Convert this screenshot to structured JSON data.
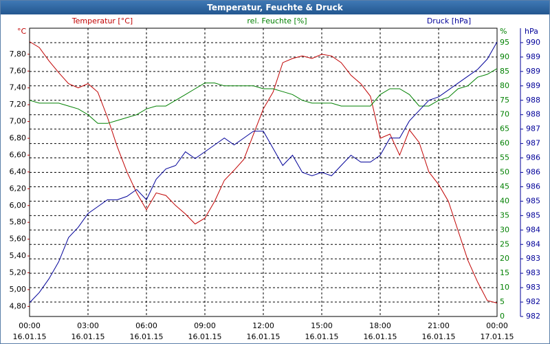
{
  "chart_data": {
    "type": "line",
    "title": "Temperatur, Feuchte & Druck",
    "x": [
      0,
      0.5,
      1,
      1.5,
      2,
      2.5,
      3,
      3.5,
      4,
      4.5,
      5,
      5.5,
      6,
      6.5,
      7,
      7.5,
      8,
      8.5,
      9,
      9.5,
      10,
      10.5,
      11,
      11.5,
      12,
      12.5,
      13,
      13.5,
      14,
      14.5,
      15,
      15.5,
      16,
      16.5,
      17,
      17.5,
      18,
      18.5,
      19,
      19.5,
      20,
      20.5,
      21,
      21.5,
      22,
      22.5,
      23,
      23.5,
      24
    ],
    "xlim": [
      0,
      24
    ],
    "xticks": [
      {
        "value": 0,
        "label": "00:00"
      },
      {
        "value": 3,
        "label": "03:00"
      },
      {
        "value": 6,
        "label": "06:00"
      },
      {
        "value": 9,
        "label": "09:00"
      },
      {
        "value": 12,
        "label": "12:00"
      },
      {
        "value": 15,
        "label": "15:00"
      },
      {
        "value": 18,
        "label": "18:00"
      },
      {
        "value": 21,
        "label": "21:00"
      },
      {
        "value": 24,
        "label": "00:00"
      }
    ],
    "xtick_dates": [
      "16.01.15",
      "16.01.15",
      "16.01.15",
      "16.01.15",
      "16.01.15",
      "16.01.15",
      "16.01.15",
      "16.01.15",
      "17.01.15"
    ],
    "ylabel": "°C",
    "y2label": "%",
    "y3label": "hPa",
    "ylim": [
      4.68,
      8.11
    ],
    "yticks": [
      {
        "value": 4.8,
        "label": "4,80"
      },
      {
        "value": 5.0,
        "label": "5,00"
      },
      {
        "value": 5.2,
        "label": "5,20"
      },
      {
        "value": 5.4,
        "label": "5,40"
      },
      {
        "value": 5.6,
        "label": "5,60"
      },
      {
        "value": 5.8,
        "label": "5,80"
      },
      {
        "value": 6.0,
        "label": "6,00"
      },
      {
        "value": 6.2,
        "label": "6,20"
      },
      {
        "value": 6.4,
        "label": "6,40"
      },
      {
        "value": 6.6,
        "label": "6,60"
      },
      {
        "value": 6.8,
        "label": "6,80"
      },
      {
        "value": 7.0,
        "label": "7,00"
      },
      {
        "value": 7.2,
        "label": "7,20"
      },
      {
        "value": 7.4,
        "label": "7,40"
      },
      {
        "value": 7.6,
        "label": "7,60"
      },
      {
        "value": 7.8,
        "label": "7,80"
      }
    ],
    "y2lim": [
      0,
      100
    ],
    "y2ticks": [
      0,
      5,
      10,
      15,
      20,
      25,
      30,
      35,
      40,
      45,
      50,
      55,
      60,
      65,
      70,
      75,
      80,
      85,
      90,
      95
    ],
    "y3lim": [
      981.8,
      990.2
    ],
    "y3ticks": [
      {
        "value": 981.8,
        "label": "982"
      },
      {
        "value": 982.22,
        "label": "982"
      },
      {
        "value": 982.64,
        "label": "983"
      },
      {
        "value": 983.06,
        "label": "983"
      },
      {
        "value": 983.48,
        "label": "983"
      },
      {
        "value": 983.9,
        "label": "984"
      },
      {
        "value": 984.32,
        "label": "984"
      },
      {
        "value": 984.74,
        "label": "985"
      },
      {
        "value": 985.16,
        "label": "985"
      },
      {
        "value": 985.58,
        "label": "986"
      },
      {
        "value": 986.0,
        "label": "986"
      },
      {
        "value": 986.42,
        "label": "986"
      },
      {
        "value": 986.84,
        "label": "987"
      },
      {
        "value": 987.26,
        "label": "987"
      },
      {
        "value": 987.68,
        "label": "988"
      },
      {
        "value": 988.1,
        "label": "988"
      },
      {
        "value": 988.52,
        "label": "989"
      },
      {
        "value": 988.94,
        "label": "989"
      },
      {
        "value": 989.36,
        "label": "989"
      },
      {
        "value": 989.78,
        "label": "990"
      }
    ],
    "grid": true,
    "series": [
      {
        "name": "Temperatur [°C]",
        "color": "#c00000",
        "axis": "y",
        "values": [
          7.95,
          7.88,
          7.72,
          7.58,
          7.45,
          7.4,
          7.45,
          7.35,
          7.05,
          6.7,
          6.4,
          6.15,
          5.95,
          6.15,
          6.12,
          6.0,
          5.9,
          5.78,
          5.85,
          6.05,
          6.3,
          6.42,
          6.55,
          6.85,
          7.15,
          7.35,
          7.7,
          7.75,
          7.78,
          7.75,
          7.8,
          7.78,
          7.7,
          7.55,
          7.45,
          7.3,
          6.8,
          6.85,
          6.6,
          6.9,
          6.75,
          6.4,
          6.25,
          6.05,
          5.7,
          5.35,
          5.09,
          4.87,
          4.84
        ]
      },
      {
        "name": "rel. Feuchte [%]",
        "color": "#008000",
        "axis": "y2",
        "values": [
          75,
          74,
          74,
          74,
          73,
          72,
          70,
          67,
          67,
          68,
          69,
          70,
          72,
          73,
          73,
          75,
          77,
          79,
          81,
          81,
          80,
          80,
          80,
          80,
          79,
          79,
          78,
          77,
          75,
          74,
          74,
          74,
          73,
          73,
          73,
          73,
          77,
          79,
          79,
          77,
          73,
          73,
          75,
          76,
          79,
          80,
          83,
          84,
          86
        ]
      },
      {
        "name": "Druck [hPa]",
        "color": "#000099",
        "axis": "y3",
        "values": [
          982.2,
          982.5,
          982.9,
          983.4,
          984.1,
          984.4,
          984.8,
          985.0,
          985.2,
          985.2,
          985.3,
          985.5,
          985.2,
          985.8,
          986.1,
          986.2,
          986.6,
          986.4,
          986.6,
          986.8,
          987.0,
          986.8,
          987.0,
          987.2,
          987.2,
          986.7,
          986.2,
          986.5,
          986.0,
          985.9,
          986.0,
          985.9,
          986.2,
          986.5,
          986.3,
          986.3,
          986.5,
          987.0,
          987.0,
          987.5,
          987.8,
          988.1,
          988.2,
          988.4,
          988.6,
          988.8,
          989.0,
          989.3,
          989.8
        ]
      }
    ]
  }
}
